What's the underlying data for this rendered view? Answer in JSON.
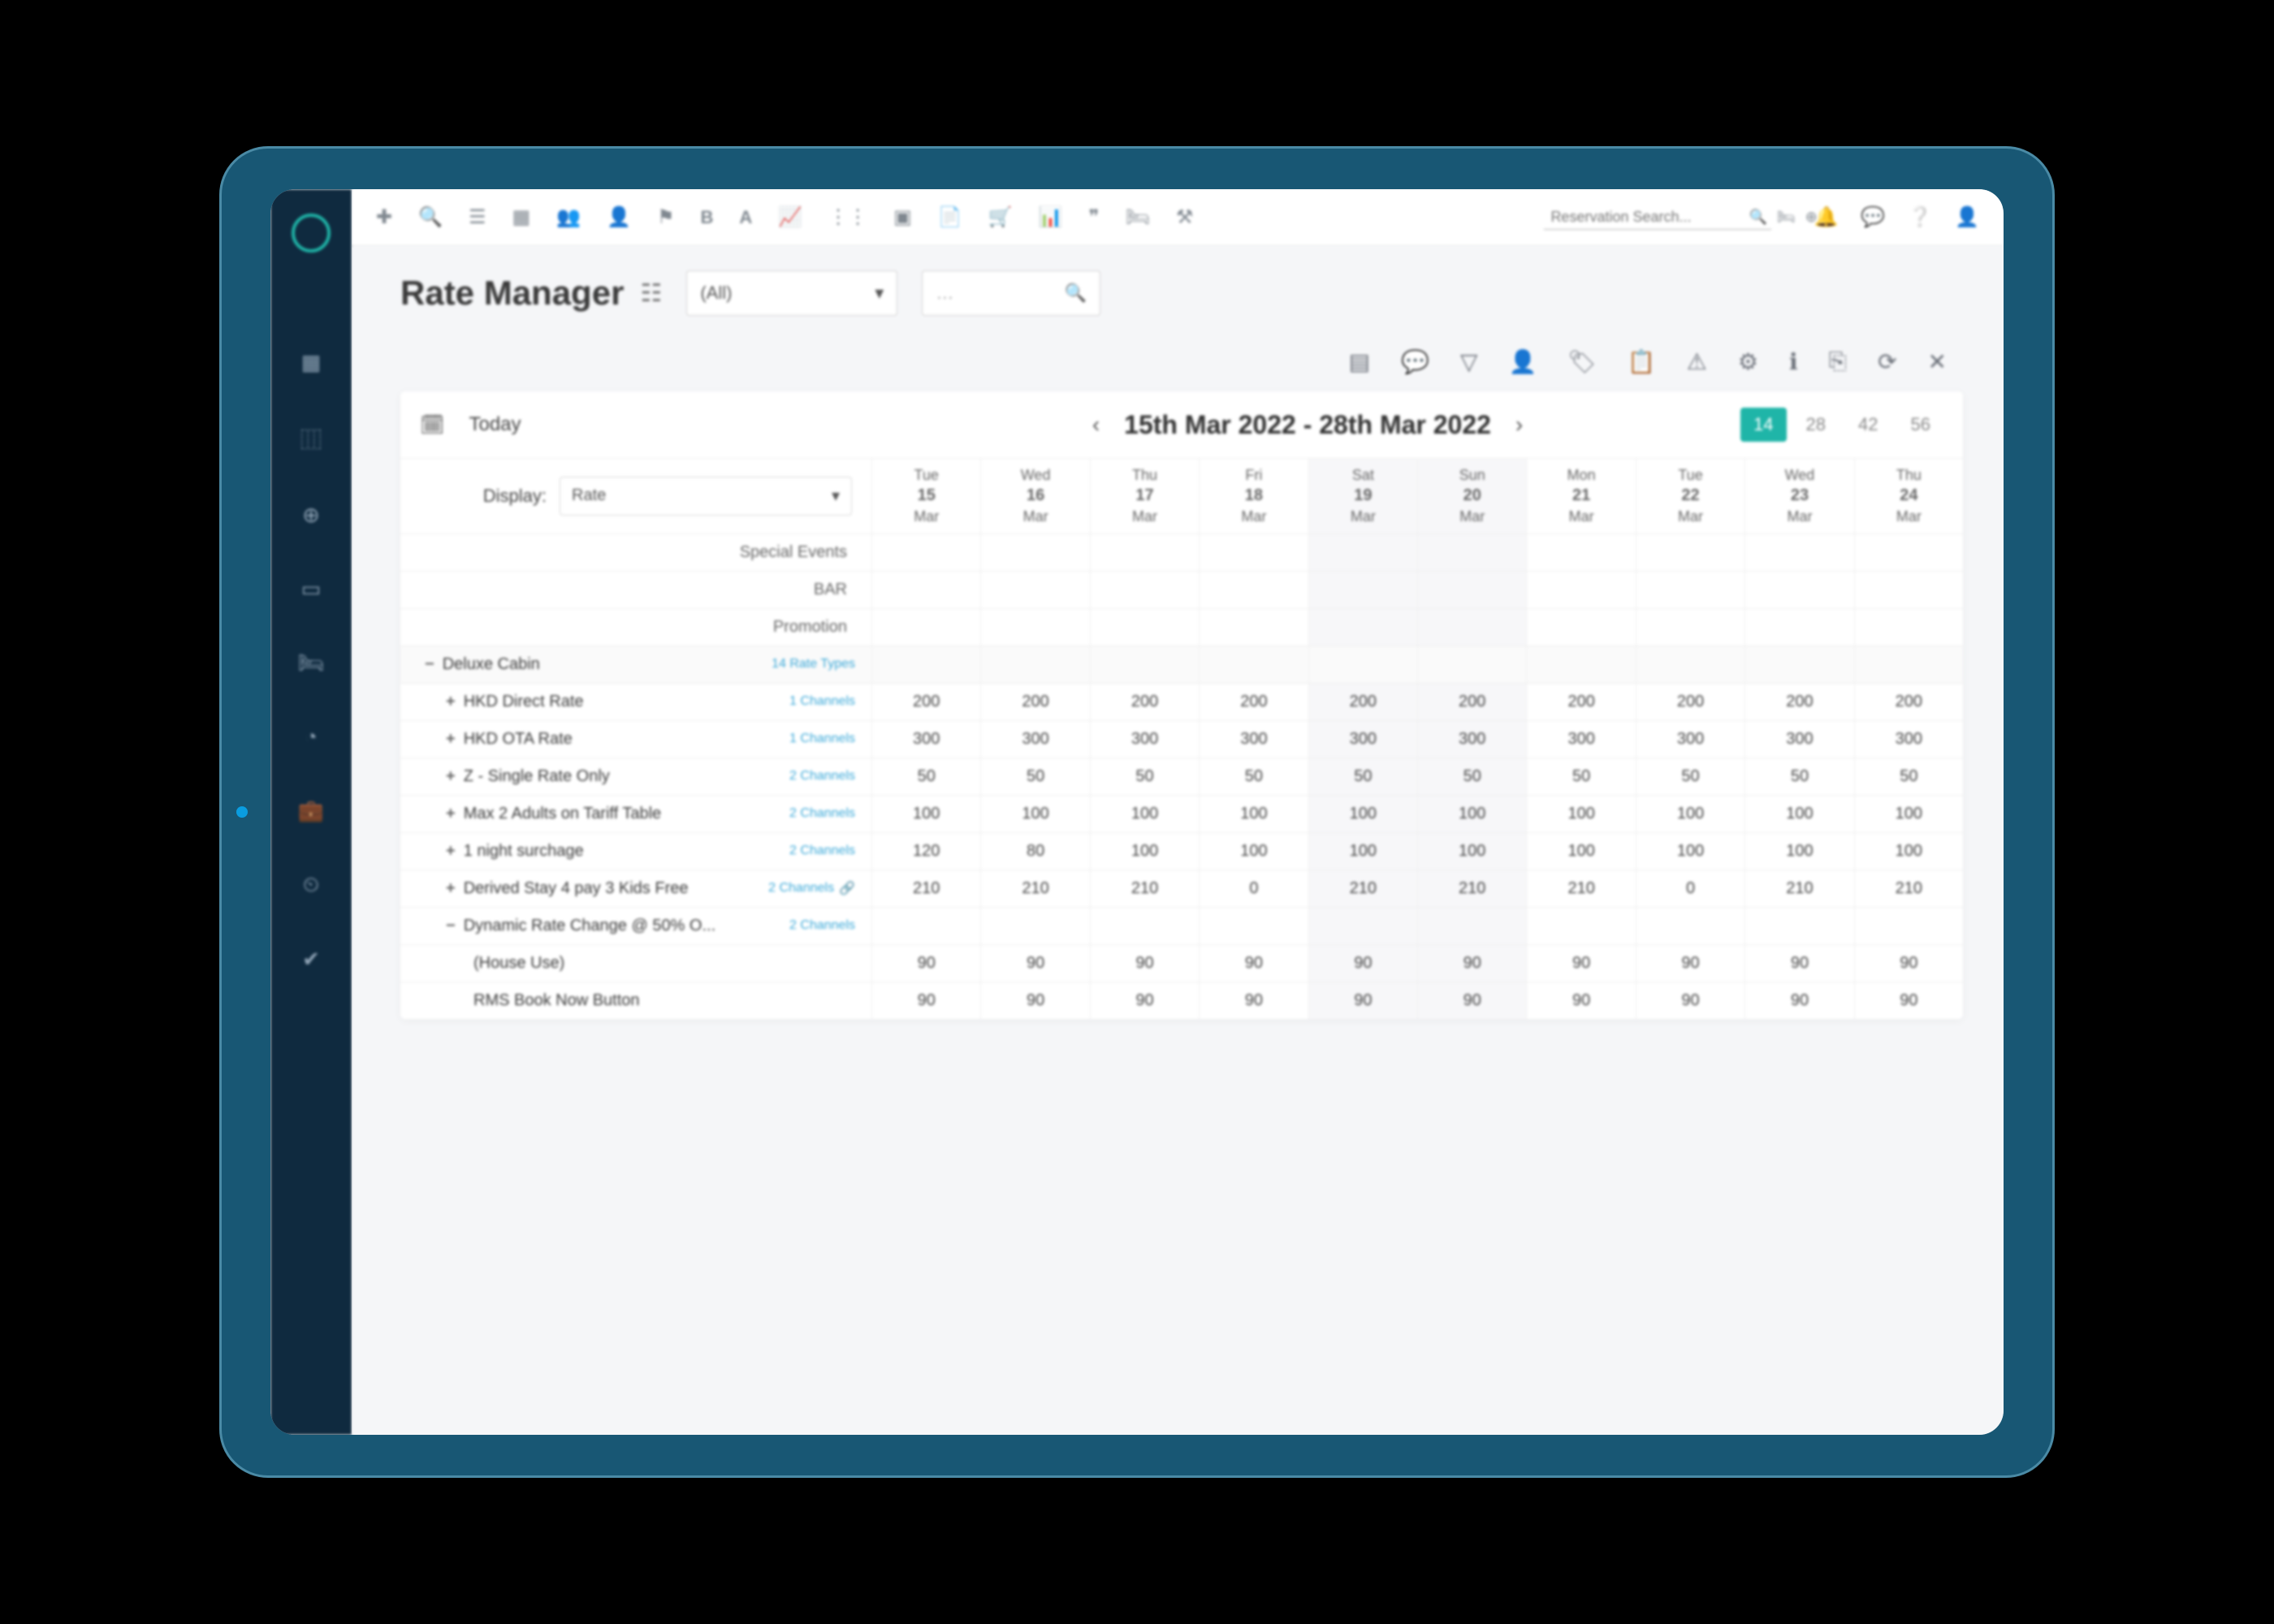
{
  "page": {
    "title": "Rate Manager",
    "filter_all": "(All)",
    "today_label": "Today",
    "date_range": "15th Mar 2022 - 28th Mar 2022",
    "display_label": "Display:",
    "display_value": "Rate"
  },
  "search": {
    "placeholder": "Reservation Search..."
  },
  "view_buttons": [
    "14",
    "28",
    "42",
    "56"
  ],
  "view_active_index": 0,
  "colors": {
    "tablet_frame": "#185774",
    "nav_rail": "#0f2a3f",
    "accent_teal": "#1fb5a8",
    "accent_pink": "#f05b7a",
    "accent_blue": "#3aa8d8",
    "background": "#f5f6f8",
    "text_primary": "#3a3a3a",
    "text_secondary": "#666666"
  },
  "weekend_indices": [
    4,
    5
  ],
  "days": [
    {
      "dow": "Tue",
      "num": "15",
      "mon": "Mar"
    },
    {
      "dow": "Wed",
      "num": "16",
      "mon": "Mar"
    },
    {
      "dow": "Thu",
      "num": "17",
      "mon": "Mar"
    },
    {
      "dow": "Fri",
      "num": "18",
      "mon": "Mar"
    },
    {
      "dow": "Sat",
      "num": "19",
      "mon": "Mar"
    },
    {
      "dow": "Sun",
      "num": "20",
      "mon": "Mar"
    },
    {
      "dow": "Mon",
      "num": "21",
      "mon": "Mar"
    },
    {
      "dow": "Tue",
      "num": "22",
      "mon": "Mar"
    },
    {
      "dow": "Wed",
      "num": "23",
      "mon": "Mar"
    },
    {
      "dow": "Thu",
      "num": "24",
      "mon": "Mar"
    }
  ],
  "header_rows": [
    {
      "label": "Special Events"
    },
    {
      "label": "BAR"
    },
    {
      "label": "Promotion"
    }
  ],
  "group": {
    "name": "Deluxe Cabin",
    "meta": "14 Rate Types",
    "expanded": true
  },
  "rates": [
    {
      "expander": "+",
      "name": "HKD Direct Rate",
      "meta": "1 Channels",
      "values": [
        200,
        200,
        200,
        200,
        200,
        200,
        200,
        200,
        200,
        200
      ]
    },
    {
      "expander": "+",
      "name": "HKD OTA Rate",
      "meta": "1 Channels",
      "values": [
        300,
        300,
        300,
        300,
        300,
        300,
        300,
        300,
        300,
        300
      ]
    },
    {
      "expander": "+",
      "name": "Z - Single Rate Only",
      "meta": "2 Channels",
      "values": [
        50,
        50,
        50,
        50,
        50,
        50,
        50,
        50,
        50,
        50
      ]
    },
    {
      "expander": "+",
      "name": "Max 2 Adults on Tariff Table",
      "meta": "2 Channels",
      "values": [
        100,
        100,
        100,
        100,
        100,
        100,
        100,
        100,
        100,
        100
      ]
    },
    {
      "expander": "+",
      "name": "1 night surchage",
      "meta": "2 Channels",
      "values": [
        120,
        80,
        100,
        100,
        100,
        100,
        100,
        100,
        100,
        100
      ]
    },
    {
      "expander": "+",
      "name": "Derived Stay 4 pay 3 Kids Free",
      "meta": "2 Channels",
      "link": true,
      "values": [
        210,
        210,
        210,
        0,
        210,
        210,
        210,
        0,
        210,
        210
      ]
    },
    {
      "expander": "−",
      "name": "Dynamic Rate Change @ 50% O...",
      "meta": "2 Channels",
      "values": [
        "",
        "",
        "",
        "",
        "",
        "",
        "",
        "",
        "",
        ""
      ]
    }
  ],
  "sub_rates": [
    {
      "name": "(House Use)",
      "values": [
        90,
        90,
        90,
        90,
        90,
        90,
        90,
        90,
        90,
        90
      ]
    },
    {
      "name": "RMS Book Now Button",
      "values": [
        90,
        90,
        90,
        90,
        90,
        90,
        90,
        90,
        90,
        90
      ]
    }
  ]
}
